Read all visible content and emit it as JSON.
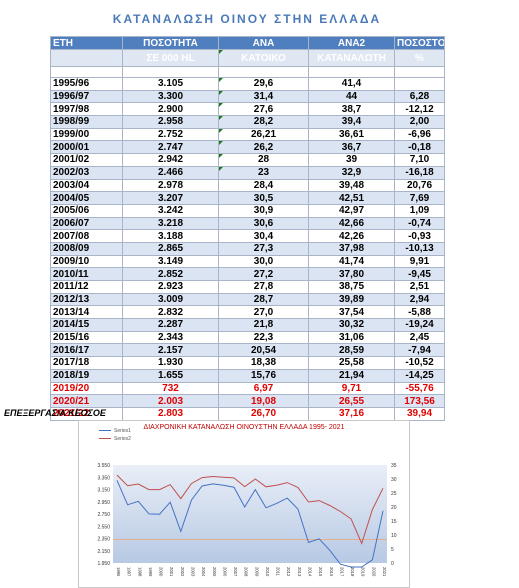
{
  "title": "ΚΑΤΑΝΑΛΩΣΗ ΟΙΝΟΥ ΣΤΗΝ ΕΛΛΑΔΑ",
  "header": {
    "row1": [
      "ΕΤΗ",
      "ΠΟΣΟΤΗΤΑ",
      "ΑΝΑ",
      "ΑΝΑ2",
      "ΠΟΣΟΣΤΟ"
    ],
    "row2": [
      "",
      "ΣΕ 000 HL",
      "ΚΑΤΟΙΚΟ",
      "ΚΑΤΑΝΑΛΩΤΗ",
      "%"
    ]
  },
  "rows": [
    {
      "year": "1995/96",
      "qty": "3.105",
      "per_cap": "29,6",
      "per_cons": "41,4",
      "pct": "",
      "flag": false
    },
    {
      "year": "1996/97",
      "qty": "3.300",
      "per_cap": "31,4",
      "per_cons": "44",
      "pct": "6,28",
      "flag": true
    },
    {
      "year": "1997/98",
      "qty": "2.900",
      "per_cap": "27,6",
      "per_cons": "38,7",
      "pct": "-12,12",
      "flag": true
    },
    {
      "year": "1998/99",
      "qty": "2.958",
      "per_cap": "28,2",
      "per_cons": "39,4",
      "pct": "2,00",
      "flag": true
    },
    {
      "year": "1999/00",
      "qty": "2.752",
      "per_cap": "26,21",
      "per_cons": "36,61",
      "pct": "-6,96",
      "flag": true
    },
    {
      "year": "2000/01",
      "qty": "2.747",
      "per_cap": "26,2",
      "per_cons": "36,7",
      "pct": "-0,18",
      "flag": true
    },
    {
      "year": "2001/02",
      "qty": "2.942",
      "per_cap": "28",
      "per_cons": "39",
      "pct": "7,10",
      "flag": true
    },
    {
      "year": "2002/03",
      "qty": "2.466",
      "per_cap": "23",
      "per_cons": "32,9",
      "pct": "-16,18",
      "flag": true
    },
    {
      "year": "2003/04",
      "qty": "2.978",
      "per_cap": "28,4",
      "per_cons": "39,48",
      "pct": "20,76",
      "flag": false
    },
    {
      "year": "2004/05",
      "qty": "3.207",
      "per_cap": "30,5",
      "per_cons": "42,51",
      "pct": "7,69",
      "flag": false
    },
    {
      "year": "2005/06",
      "qty": "3.242",
      "per_cap": "30,9",
      "per_cons": "42,97",
      "pct": "1,09",
      "flag": false
    },
    {
      "year": "2006/07",
      "qty": "3.218",
      "per_cap": "30,6",
      "per_cons": "42,66",
      "pct": "-0,74",
      "flag": false
    },
    {
      "year": "2007/08",
      "qty": "3.188",
      "per_cap": "30,4",
      "per_cons": "42,26",
      "pct": "-0,93",
      "flag": false
    },
    {
      "year": "2008/09",
      "qty": "2.865",
      "per_cap": "27,3",
      "per_cons": "37,98",
      "pct": "-10,13",
      "flag": false
    },
    {
      "year": "2009/10",
      "qty": "3.149",
      "per_cap": "30,0",
      "per_cons": "41,74",
      "pct": "9,91",
      "flag": false
    },
    {
      "year": "2010/11",
      "qty": "2.852",
      "per_cap": "27,2",
      "per_cons": "37,80",
      "pct": "-9,45",
      "flag": false
    },
    {
      "year": "2011/12",
      "qty": "2.923",
      "per_cap": "27,8",
      "per_cons": "38,75",
      "pct": "2,51",
      "flag": false
    },
    {
      "year": "2012/13",
      "qty": "3.009",
      "per_cap": "28,7",
      "per_cons": "39,89",
      "pct": "2,94",
      "flag": false
    },
    {
      "year": "2013/14",
      "qty": "2.832",
      "per_cap": "27,0",
      "per_cons": "37,54",
      "pct": "-5,88",
      "flag": false
    },
    {
      "year": "2014/15",
      "qty": "2.287",
      "per_cap": "21,8",
      "per_cons": "30,32",
      "pct": "-19,24",
      "flag": false
    },
    {
      "year": "2015/16",
      "qty": "2.343",
      "per_cap": "22,3",
      "per_cons": "31,06",
      "pct": "2,45",
      "flag": false
    },
    {
      "year": "2016/17",
      "qty": "2.157",
      "per_cap": "20,54",
      "per_cons": "28,59",
      "pct": "-7,94",
      "flag": false
    },
    {
      "year": "2017/18",
      "qty": "1.930",
      "per_cap": "18,38",
      "per_cons": "25,58",
      "pct": "-10,52",
      "flag": false
    },
    {
      "year": "2018/19",
      "qty": "1.655",
      "per_cap": "15,76",
      "per_cons": "21,94",
      "pct": "-14,25",
      "flag": false
    },
    {
      "year": "2019/20",
      "qty": "732",
      "per_cap": "6,97",
      "per_cons": "9,71",
      "pct": "-55,76",
      "flag": false,
      "red": true
    },
    {
      "year": "2020/21",
      "qty": "2.003",
      "per_cap": "19,08",
      "per_cons": "26,55",
      "pct": "173,56",
      "flag": false,
      "red": true
    },
    {
      "year": "2021/22",
      "qty": "2.803",
      "per_cap": "26,70",
      "per_cons": "37,16",
      "pct": "39,94",
      "flag": false,
      "red": true
    }
  ],
  "credit": "ΕΠΕΞΕΡΓΑΣΙΑ ΚΕΟΣΟΕ",
  "chart_data": {
    "type": "line",
    "title": "ΔΙΑΧΡΟΝΙΚΗ ΚΑΤΑΝΑΛΩΣΗ ΟΙΝΟΥΣΤΗΝ ΕΛΛΑΔΑ 1995- 2021",
    "categories": [
      "1996",
      "1997",
      "1998",
      "1999",
      "2000",
      "2001",
      "2002",
      "2003",
      "2004",
      "2005",
      "2006",
      "2007",
      "2008",
      "2009",
      "2010",
      "2011",
      "2012",
      "2013",
      "2014",
      "2015",
      "2016",
      "2017",
      "2018",
      "2019",
      "2020",
      "2021"
    ],
    "series": [
      {
        "name": "Series1",
        "axis": "left",
        "color": "#4472c4",
        "values": [
          3300,
          2900,
          2958,
          2752,
          2747,
          2942,
          2466,
          2978,
          3207,
          3242,
          3218,
          3188,
          2865,
          3149,
          2852,
          2923,
          3009,
          2832,
          2287,
          2343,
          2157,
          1930,
          1655,
          732,
          2003,
          2803
        ]
      },
      {
        "name": "Series2",
        "axis": "right",
        "color": "#c0504d",
        "values": [
          31.4,
          27.6,
          28.2,
          26.21,
          26.2,
          28,
          23,
          28.4,
          30.5,
          30.9,
          30.6,
          30.4,
          27.3,
          30.0,
          27.2,
          27.8,
          28.7,
          27.0,
          21.8,
          22.3,
          20.54,
          18.38,
          15.76,
          6.97,
          19.08,
          26.7
        ]
      }
    ],
    "y_left_ticks": [
      "3.550",
      "3.350",
      "3.150",
      "2.950",
      "2.750",
      "2.550",
      "2.350",
      "2.150",
      "1.950"
    ],
    "y_left_range": [
      1950,
      3550
    ],
    "y_right_ticks": [
      "35",
      "30",
      "25",
      "20",
      "15",
      "10",
      "5",
      "0"
    ],
    "y_right_range": [
      0,
      35
    ],
    "legend_position": "top-left",
    "reference_line_color": "#f2a36a"
  }
}
